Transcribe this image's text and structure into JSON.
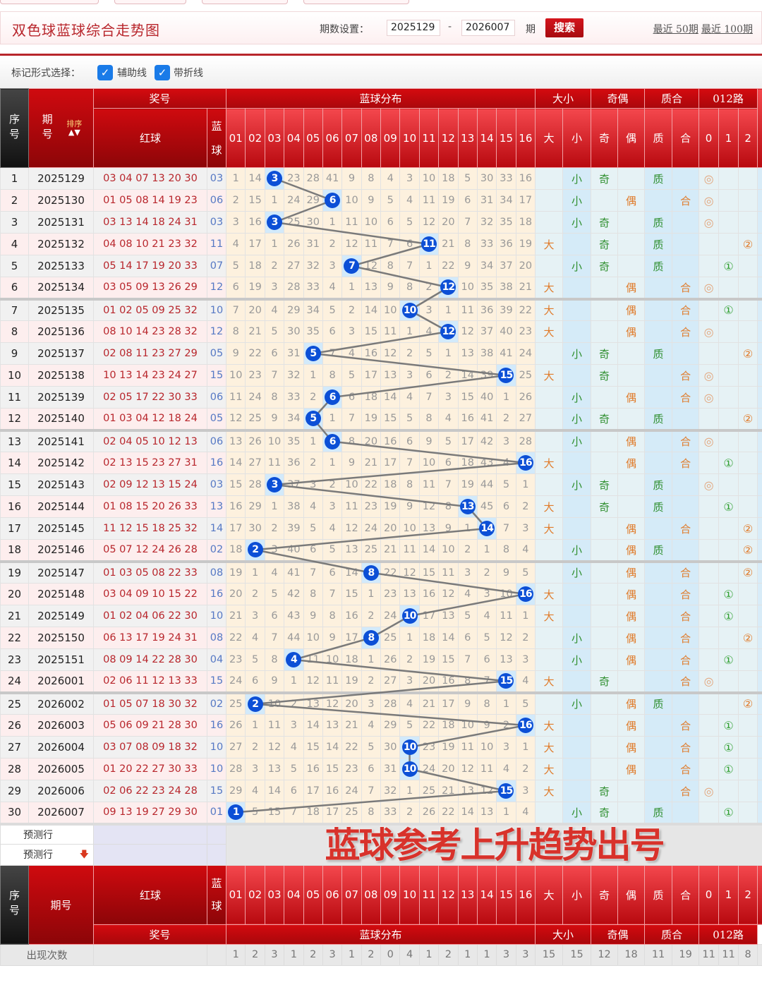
{
  "header": {
    "title": "双色球蓝球综合走势图",
    "period_label": "期数设置：",
    "from": "2025129",
    "to": "2026007",
    "period_unit": "期",
    "search": "搜索",
    "recent50": "最近 50期",
    "recent100": "最近 100期"
  },
  "marker": {
    "label": "标记形式选择：",
    "aux_line": "辅助线",
    "aux_checked": true,
    "fold_line": "带折线",
    "fold_checked": true
  },
  "table_header": {
    "seq": "序号",
    "period": "期号",
    "sort": "排序",
    "prize": "奖号",
    "red": "红球",
    "blue": "蓝球",
    "blue_dist": "蓝球分布",
    "size": "大小",
    "parity": "奇偶",
    "prime": "质合",
    "route": "012路",
    "big": "大",
    "small": "小",
    "odd": "奇",
    "even": "偶",
    "pr": "质",
    "comp": "合",
    "r0": "0",
    "r1": "1",
    "r2": "2",
    "nums": [
      "01",
      "02",
      "03",
      "04",
      "05",
      "06",
      "07",
      "08",
      "09",
      "10",
      "11",
      "12",
      "13",
      "14",
      "15",
      "16"
    ]
  },
  "colors": {
    "ball": "#0c4fd6",
    "header_red": "#c0090f",
    "red_text": "#b8262c",
    "blue_text": "#5578c4"
  },
  "rows": [
    {
      "seq": "1",
      "period": "2025129",
      "red": "03 04 07 13 20 30",
      "blue": "03",
      "miss": [
        1,
        14,
        3,
        23,
        28,
        41,
        9,
        8,
        4,
        3,
        10,
        18,
        5,
        30,
        33,
        16
      ],
      "size": "小",
      "parity": "奇",
      "prime": "质",
      "route": "◎"
    },
    {
      "seq": "2",
      "period": "2025130",
      "red": "01 05 08 14 19 23",
      "blue": "06",
      "miss": [
        2,
        15,
        1,
        24,
        29,
        6,
        10,
        9,
        5,
        4,
        11,
        19,
        6,
        31,
        34,
        17
      ],
      "size": "小",
      "parity": "偶",
      "prime": "合",
      "route": "◎"
    },
    {
      "seq": "3",
      "period": "2025131",
      "red": "03 13 14 18 24 31",
      "blue": "03",
      "miss": [
        3,
        16,
        3,
        25,
        30,
        1,
        11,
        10,
        6,
        5,
        12,
        20,
        7,
        32,
        35,
        18
      ],
      "size": "小",
      "parity": "奇",
      "prime": "质",
      "route": "◎"
    },
    {
      "seq": "4",
      "period": "2025132",
      "red": "04 08 10 21 23 32",
      "blue": "11",
      "miss": [
        4,
        17,
        1,
        26,
        31,
        2,
        12,
        11,
        7,
        6,
        11,
        21,
        8,
        33,
        36,
        19
      ],
      "size": "大",
      "parity": "奇",
      "prime": "质",
      "route": "②"
    },
    {
      "seq": "5",
      "period": "2025133",
      "red": "05 14 17 19 20 33",
      "blue": "07",
      "miss": [
        5,
        18,
        2,
        27,
        32,
        3,
        7,
        12,
        8,
        7,
        1,
        22,
        9,
        34,
        37,
        20
      ],
      "size": "小",
      "parity": "奇",
      "prime": "质",
      "route": "①"
    },
    {
      "seq": "6",
      "period": "2025134",
      "red": "03 05 09 13 26 29",
      "blue": "12",
      "miss": [
        6,
        19,
        3,
        28,
        33,
        4,
        1,
        13,
        9,
        8,
        2,
        12,
        10,
        35,
        38,
        21
      ],
      "size": "大",
      "parity": "偶",
      "prime": "合",
      "route": "◎"
    },
    {
      "seq": "7",
      "period": "2025135",
      "red": "01 02 05 09 25 32",
      "blue": "10",
      "miss": [
        7,
        20,
        4,
        29,
        34,
        5,
        2,
        14,
        10,
        10,
        3,
        1,
        11,
        36,
        39,
        22
      ],
      "size": "大",
      "parity": "偶",
      "prime": "合",
      "route": "①"
    },
    {
      "seq": "8",
      "period": "2025136",
      "red": "08 10 14 23 28 32",
      "blue": "12",
      "miss": [
        8,
        21,
        5,
        30,
        35,
        6,
        3,
        15,
        11,
        1,
        4,
        12,
        12,
        37,
        40,
        23
      ],
      "size": "大",
      "parity": "偶",
      "prime": "合",
      "route": "◎"
    },
    {
      "seq": "9",
      "period": "2025137",
      "red": "02 08 11 23 27 29",
      "blue": "05",
      "miss": [
        9,
        22,
        6,
        31,
        5,
        7,
        4,
        16,
        12,
        2,
        5,
        1,
        13,
        38,
        41,
        24
      ],
      "size": "小",
      "parity": "奇",
      "prime": "质",
      "route": "②"
    },
    {
      "seq": "10",
      "period": "2025138",
      "red": "10 13 14 23 24 27",
      "blue": "15",
      "miss": [
        10,
        23,
        7,
        32,
        1,
        8,
        5,
        17,
        13,
        3,
        6,
        2,
        14,
        39,
        15,
        25
      ],
      "size": "大",
      "parity": "奇",
      "prime": "合",
      "route": "◎"
    },
    {
      "seq": "11",
      "period": "2025139",
      "red": "02 05 17 22 30 33",
      "blue": "06",
      "miss": [
        11,
        24,
        8,
        33,
        2,
        6,
        6,
        18,
        14,
        4,
        7,
        3,
        15,
        40,
        1,
        26
      ],
      "size": "小",
      "parity": "偶",
      "prime": "合",
      "route": "◎"
    },
    {
      "seq": "12",
      "period": "2025140",
      "red": "01 03 04 12 18 24",
      "blue": "05",
      "miss": [
        12,
        25,
        9,
        34,
        5,
        1,
        7,
        19,
        15,
        5,
        8,
        4,
        16,
        41,
        2,
        27
      ],
      "size": "小",
      "parity": "奇",
      "prime": "质",
      "route": "②"
    },
    {
      "seq": "13",
      "period": "2025141",
      "red": "02 04 05 10 12 13",
      "blue": "06",
      "miss": [
        13,
        26,
        10,
        35,
        1,
        6,
        8,
        20,
        16,
        6,
        9,
        5,
        17,
        42,
        3,
        28
      ],
      "size": "小",
      "parity": "偶",
      "prime": "合",
      "route": "◎"
    },
    {
      "seq": "14",
      "period": "2025142",
      "red": "02 13 15 23 27 31",
      "blue": "16",
      "miss": [
        14,
        27,
        11,
        36,
        2,
        1,
        9,
        21,
        17,
        7,
        10,
        6,
        18,
        43,
        4,
        16
      ],
      "size": "大",
      "parity": "偶",
      "prime": "合",
      "route": "①"
    },
    {
      "seq": "15",
      "period": "2025143",
      "red": "02 09 12 13 15 24",
      "blue": "03",
      "miss": [
        15,
        28,
        3,
        37,
        3,
        2,
        10,
        22,
        18,
        8,
        11,
        7,
        19,
        44,
        5,
        1
      ],
      "size": "小",
      "parity": "奇",
      "prime": "质",
      "route": "◎"
    },
    {
      "seq": "16",
      "period": "2025144",
      "red": "01 08 15 20 26 33",
      "blue": "13",
      "miss": [
        16,
        29,
        1,
        38,
        4,
        3,
        11,
        23,
        19,
        9,
        12,
        8,
        13,
        45,
        6,
        2
      ],
      "size": "大",
      "parity": "奇",
      "prime": "质",
      "route": "①"
    },
    {
      "seq": "17",
      "period": "2025145",
      "red": "11 12 15 18 25 32",
      "blue": "14",
      "miss": [
        17,
        30,
        2,
        39,
        5,
        4,
        12,
        24,
        20,
        10,
        13,
        9,
        1,
        14,
        7,
        3
      ],
      "size": "大",
      "parity": "偶",
      "prime": "合",
      "route": "②"
    },
    {
      "seq": "18",
      "period": "2025146",
      "red": "05 07 12 24 26 28",
      "blue": "02",
      "miss": [
        18,
        2,
        3,
        40,
        6,
        5,
        13,
        25,
        21,
        11,
        14,
        10,
        2,
        1,
        8,
        4
      ],
      "size": "小",
      "parity": "偶",
      "prime": "质",
      "route": "②"
    },
    {
      "seq": "19",
      "period": "2025147",
      "red": "01 03 05 08 22 33",
      "blue": "08",
      "miss": [
        19,
        1,
        4,
        41,
        7,
        6,
        14,
        8,
        22,
        12,
        15,
        11,
        3,
        2,
        9,
        5
      ],
      "size": "小",
      "parity": "偶",
      "prime": "合",
      "route": "②"
    },
    {
      "seq": "20",
      "period": "2025148",
      "red": "03 04 09 10 15 22",
      "blue": "16",
      "miss": [
        20,
        2,
        5,
        42,
        8,
        7,
        15,
        1,
        23,
        13,
        16,
        12,
        4,
        3,
        10,
        16
      ],
      "size": "大",
      "parity": "偶",
      "prime": "合",
      "route": "①"
    },
    {
      "seq": "21",
      "period": "2025149",
      "red": "01 02 04 06 22 30",
      "blue": "10",
      "miss": [
        21,
        3,
        6,
        43,
        9,
        8,
        16,
        2,
        24,
        10,
        17,
        13,
        5,
        4,
        11,
        1
      ],
      "size": "大",
      "parity": "偶",
      "prime": "合",
      "route": "①"
    },
    {
      "seq": "22",
      "period": "2025150",
      "red": "06 13 17 19 24 31",
      "blue": "08",
      "miss": [
        22,
        4,
        7,
        44,
        10,
        9,
        17,
        8,
        25,
        1,
        18,
        14,
        6,
        5,
        12,
        2
      ],
      "size": "小",
      "parity": "偶",
      "prime": "合",
      "route": "②"
    },
    {
      "seq": "23",
      "period": "2025151",
      "red": "08 09 14 22 28 30",
      "blue": "04",
      "miss": [
        23,
        5,
        8,
        4,
        11,
        10,
        18,
        1,
        26,
        2,
        19,
        15,
        7,
        6,
        13,
        3
      ],
      "size": "小",
      "parity": "偶",
      "prime": "合",
      "route": "①"
    },
    {
      "seq": "24",
      "period": "2026001",
      "red": "02 06 11 12 13 33",
      "blue": "15",
      "miss": [
        24,
        6,
        9,
        1,
        12,
        11,
        19,
        2,
        27,
        3,
        20,
        16,
        8,
        7,
        15,
        4
      ],
      "size": "大",
      "parity": "奇",
      "prime": "合",
      "route": "◎"
    },
    {
      "seq": "25",
      "period": "2026002",
      "red": "01 05 07 18 30 32",
      "blue": "02",
      "miss": [
        25,
        2,
        10,
        2,
        13,
        12,
        20,
        3,
        28,
        4,
        21,
        17,
        9,
        8,
        1,
        5
      ],
      "size": "小",
      "parity": "偶",
      "prime": "质",
      "route": "②"
    },
    {
      "seq": "26",
      "period": "2026003",
      "red": "05 06 09 21 28 30",
      "blue": "16",
      "miss": [
        26,
        1,
        11,
        3,
        14,
        13,
        21,
        4,
        29,
        5,
        22,
        18,
        10,
        9,
        2,
        16
      ],
      "size": "大",
      "parity": "偶",
      "prime": "合",
      "route": "①"
    },
    {
      "seq": "27",
      "period": "2026004",
      "red": "03 07 08 09 18 32",
      "blue": "10",
      "miss": [
        27,
        2,
        12,
        4,
        15,
        14,
        22,
        5,
        30,
        10,
        23,
        19,
        11,
        10,
        3,
        1
      ],
      "size": "大",
      "parity": "偶",
      "prime": "合",
      "route": "①"
    },
    {
      "seq": "28",
      "period": "2026005",
      "red": "01 20 22 27 30 33",
      "blue": "10",
      "miss": [
        28,
        3,
        13,
        5,
        16,
        15,
        23,
        6,
        31,
        10,
        24,
        20,
        12,
        11,
        4,
        2
      ],
      "size": "大",
      "parity": "偶",
      "prime": "合",
      "route": "①"
    },
    {
      "seq": "29",
      "period": "2026006",
      "red": "02 06 22 23 24 28",
      "blue": "15",
      "miss": [
        29,
        4,
        14,
        6,
        17,
        16,
        24,
        7,
        32,
        1,
        25,
        21,
        13,
        12,
        15,
        3
      ],
      "size": "大",
      "parity": "奇",
      "prime": "合",
      "route": "◎"
    },
    {
      "seq": "30",
      "period": "2026007",
      "red": "09 13 19 27 29 30",
      "blue": "01",
      "miss": [
        1,
        5,
        15,
        7,
        18,
        17,
        25,
        8,
        33,
        2,
        26,
        22,
        14,
        13,
        1,
        4
      ],
      "size": "小",
      "parity": "奇",
      "prime": "质",
      "route": "①"
    }
  ],
  "prediction": {
    "row1": "预测行",
    "row2": "预测行"
  },
  "counts": {
    "label": "出现次数",
    "dist": [
      "1",
      "2",
      "3",
      "1",
      "2",
      "3",
      "1",
      "2",
      "0",
      "4",
      "1",
      "2",
      "1",
      "1",
      "3",
      "3"
    ],
    "attrs": [
      "15",
      "15",
      "12",
      "18",
      "11",
      "19",
      "11",
      "11",
      "8"
    ]
  },
  "watermark": "蓝球参考上升趋势出号"
}
